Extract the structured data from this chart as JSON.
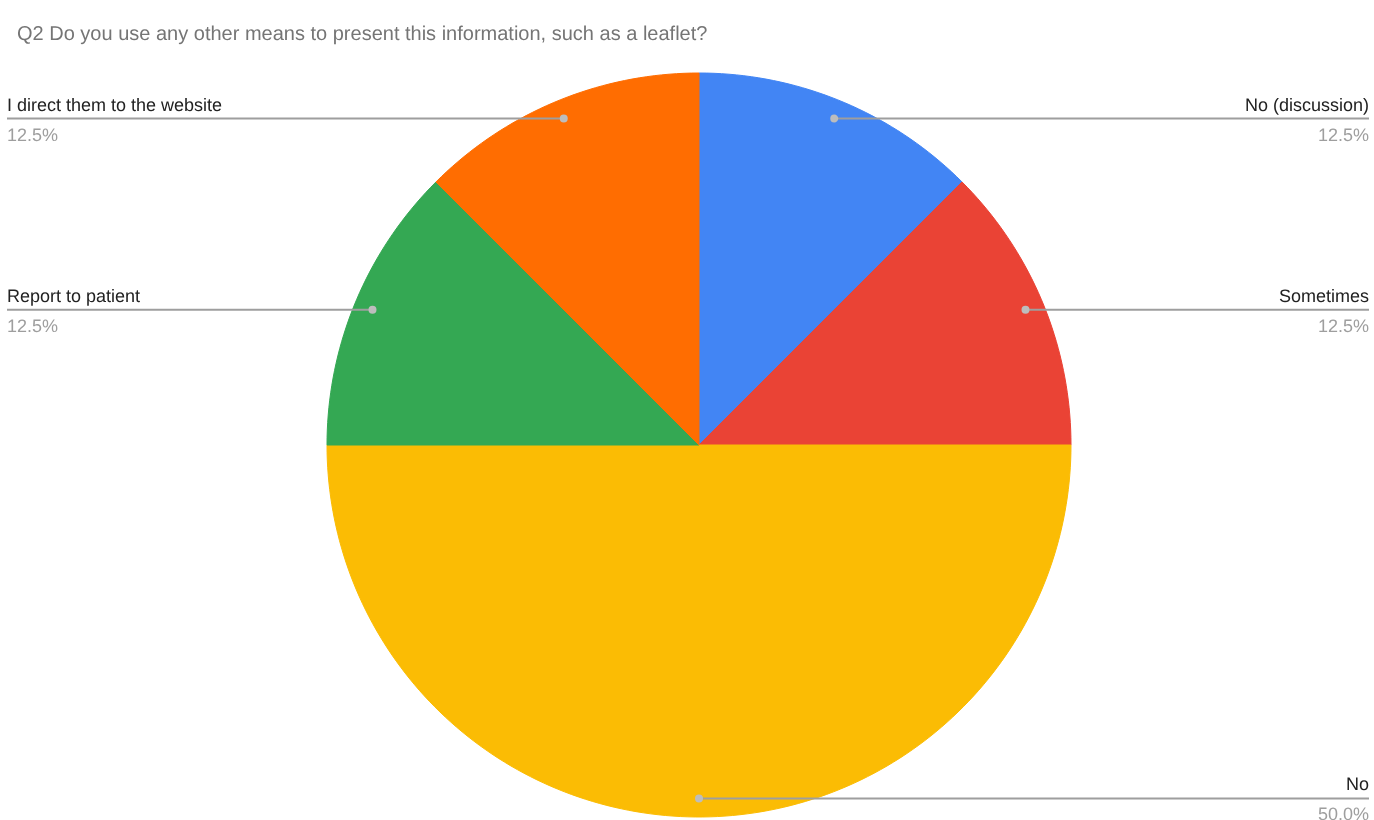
{
  "chart_data": {
    "type": "pie",
    "title": "Q2 Do you use any other means to present this information, such as a leaflet?",
    "categories": [
      "No (discussion)",
      "Sometimes",
      "No",
      "Report to patient",
      "I direct them to the website"
    ],
    "values": [
      12.5,
      12.5,
      50,
      12.5,
      12.5
    ],
    "colors": [
      "#4285f4",
      "#ea4335",
      "#fbbc04",
      "#34a853",
      "#ff6d01"
    ],
    "value_labels": [
      "12.5%",
      "12.5%",
      "50.0%",
      "12.5%",
      "12.5%"
    ]
  }
}
